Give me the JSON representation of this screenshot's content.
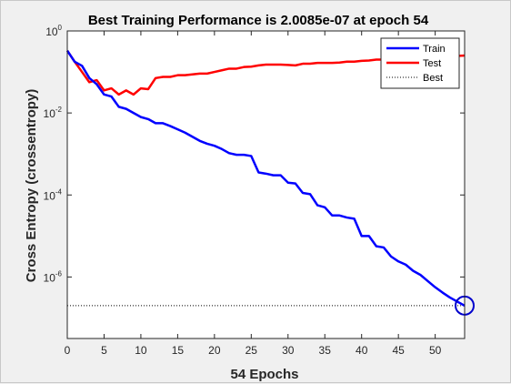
{
  "chart_data": {
    "type": "line",
    "title": "Best Training Performance is 2.0085e-07 at epoch 54",
    "xlabel": "54 Epochs",
    "ylabel": "Cross Entropy  (crossentropy)",
    "xlim": [
      0,
      54
    ],
    "ylim_log10": [
      -7.5,
      0
    ],
    "y_scale": "log",
    "x_ticks": [
      0,
      5,
      10,
      15,
      20,
      25,
      30,
      35,
      40,
      45,
      50
    ],
    "y_ticks": [
      {
        "base": "10",
        "exp": "0",
        "log10": 0
      },
      {
        "base": "10",
        "exp": "-2",
        "log10": -2
      },
      {
        "base": "10",
        "exp": "-4",
        "log10": -4
      },
      {
        "base": "10",
        "exp": "-6",
        "log10": -6
      }
    ],
    "legend_position": "top-right",
    "series": [
      {
        "name": "Train",
        "color": "#0000ff",
        "style": "solid",
        "log10_values": [
          -0.48,
          -0.75,
          -0.85,
          -1.15,
          -1.3,
          -1.55,
          -1.6,
          -1.85,
          -1.9,
          -2.0,
          -2.1,
          -2.15,
          -2.25,
          -2.25,
          -2.32,
          -2.4,
          -2.48,
          -2.58,
          -2.68,
          -2.75,
          -2.8,
          -2.88,
          -2.98,
          -3.02,
          -3.02,
          -3.05,
          -3.45,
          -3.48,
          -3.52,
          -3.52,
          -3.7,
          -3.72,
          -3.95,
          -3.98,
          -4.25,
          -4.3,
          -4.5,
          -4.5,
          -4.55,
          -4.58,
          -5.0,
          -5.0,
          -5.25,
          -5.28,
          -5.5,
          -5.62,
          -5.7,
          -5.85,
          -5.95,
          -6.1,
          -6.25,
          -6.38,
          -6.5,
          -6.6,
          -6.7
        ]
      },
      {
        "name": "Test",
        "color": "#ff0000",
        "style": "solid",
        "log10_values": [
          -0.48,
          -0.75,
          -1.0,
          -1.25,
          -1.2,
          -1.45,
          -1.4,
          -1.55,
          -1.45,
          -1.55,
          -1.4,
          -1.42,
          -1.15,
          -1.12,
          -1.12,
          -1.08,
          -1.08,
          -1.06,
          -1.04,
          -1.04,
          -1.0,
          -0.96,
          -0.92,
          -0.92,
          -0.88,
          -0.87,
          -0.84,
          -0.82,
          -0.82,
          -0.82,
          -0.83,
          -0.84,
          -0.8,
          -0.8,
          -0.78,
          -0.78,
          -0.78,
          -0.77,
          -0.75,
          -0.75,
          -0.73,
          -0.72,
          -0.7,
          -0.7,
          -0.69,
          -0.68,
          -0.67,
          -0.66,
          -0.65,
          -0.65,
          -0.64,
          -0.63,
          -0.62,
          -0.61,
          -0.6
        ]
      },
      {
        "name": "Best",
        "color": "#000000",
        "style": "dotted",
        "best_epoch": 54,
        "best_value": 2.0085e-07
      }
    ]
  }
}
